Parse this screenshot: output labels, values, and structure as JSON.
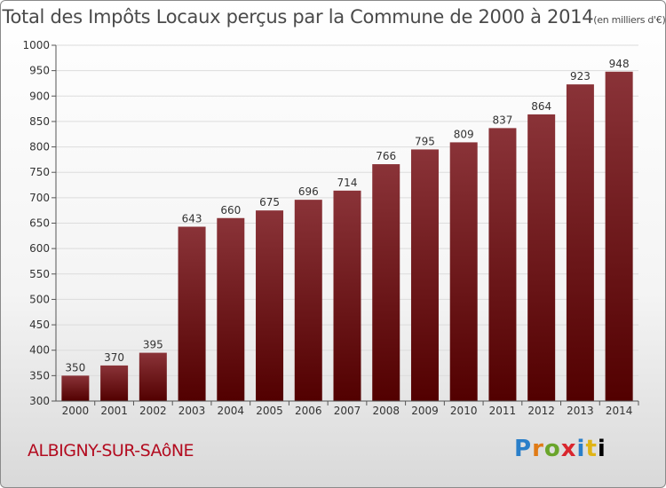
{
  "header": {
    "title_main": "Total des Impôts Locaux perçus par la Commune de 2000 à 2014",
    "title_unit": "(en milliers d'€)"
  },
  "footer": {
    "commune": "ALBIGNY-SUR-SAôNE",
    "brand": [
      "P",
      "r",
      "o",
      "x",
      "i",
      "t",
      "i"
    ]
  },
  "colors": {
    "bar_top": "#8a3338",
    "bar_bottom": "#520000",
    "grid": "#dcdcdc",
    "axis_text": "#333333"
  },
  "chart_data": {
    "type": "bar",
    "title": "Total des Impôts Locaux perçus par la Commune de 2000 à 2014",
    "subtitle": "(en milliers d'€)",
    "xlabel": "",
    "ylabel": "",
    "categories": [
      "2000",
      "2001",
      "2002",
      "2003",
      "2004",
      "2005",
      "2006",
      "2007",
      "2008",
      "2009",
      "2010",
      "2011",
      "2012",
      "2013",
      "2014"
    ],
    "values": [
      350,
      370,
      395,
      643,
      660,
      675,
      696,
      714,
      766,
      795,
      809,
      837,
      864,
      923,
      948
    ],
    "ylim": [
      300,
      1000
    ],
    "yticks": [
      300,
      350,
      400,
      450,
      500,
      550,
      600,
      650,
      700,
      750,
      800,
      850,
      900,
      950,
      1000
    ],
    "grid": true,
    "legend": "none"
  }
}
